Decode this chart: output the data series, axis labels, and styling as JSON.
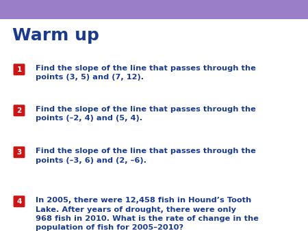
{
  "title": "Warm up",
  "title_color": "#1a3a8c",
  "title_fontsize": 18,
  "bg_color": "#ffffff",
  "header_color": "#9b7ec8",
  "text_color": "#1a3a8c",
  "badge_color": "#cc1515",
  "badge_text_color": "#ffffff",
  "items": [
    {
      "number": "1",
      "lines": [
        "Find the slope of the line that passes through the",
        "points (3, 5) and (7, 12)."
      ]
    },
    {
      "number": "2",
      "lines": [
        "Find the slope of the line that passes through the",
        "points (–2, 4) and (5, 4)."
      ]
    },
    {
      "number": "3",
      "lines": [
        "Find the slope of the line that passes through the",
        "points (–3, 6) and (2, –6)."
      ]
    },
    {
      "number": "4",
      "lines": [
        "In 2005, there were 12,458 fish in Hound’s Tooth",
        "Lake. After years of drought, there were only",
        "968 fish in 2010. What is the rate of change in the",
        "population of fish for 2005–2010?"
      ]
    }
  ]
}
